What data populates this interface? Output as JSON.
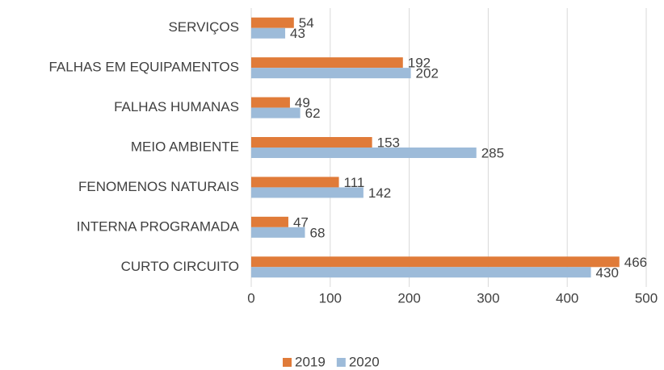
{
  "chart_data": {
    "type": "bar",
    "orientation": "horizontal",
    "categories": [
      "SERVIÇOS",
      "FALHAS EM EQUIPAMENTOS",
      "FALHAS HUMANAS",
      "MEIO AMBIENTE",
      "FENOMENOS NATURAIS",
      "INTERNA PROGRAMADA",
      "CURTO CIRCUITO"
    ],
    "series": [
      {
        "name": "2019",
        "color": "#e07b39",
        "values": [
          54,
          192,
          49,
          153,
          111,
          47,
          466
        ]
      },
      {
        "name": "2020",
        "color": "#9dbbd9",
        "values": [
          43,
          202,
          62,
          285,
          142,
          68,
          430
        ]
      }
    ],
    "xlim": [
      0,
      500
    ],
    "xticks": [
      0,
      100,
      200,
      300,
      400,
      500
    ],
    "grid": true,
    "legend": "bottom"
  }
}
